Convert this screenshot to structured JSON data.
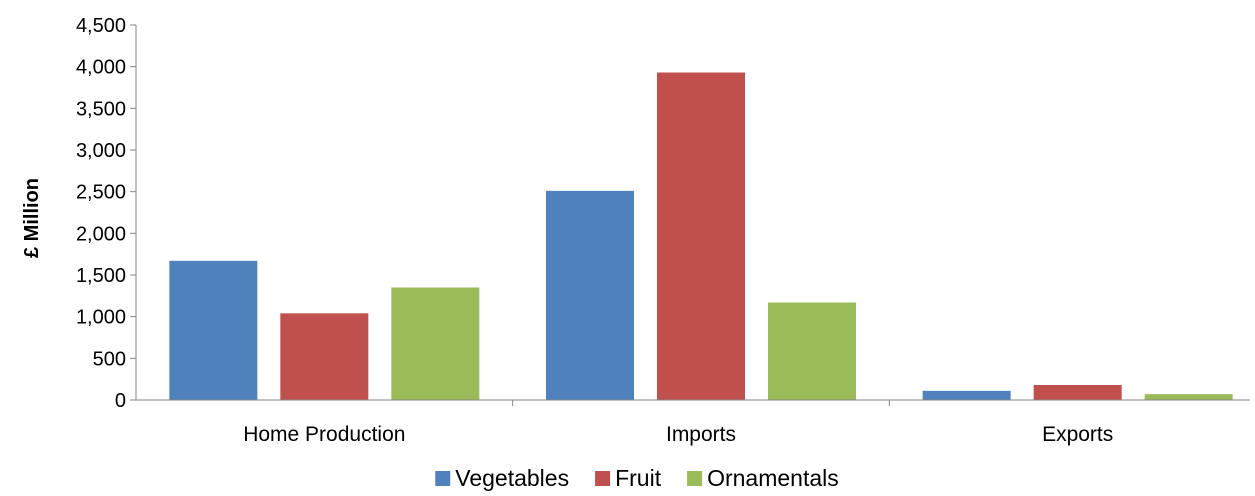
{
  "chart_data": {
    "type": "bar",
    "title": "",
    "xlabel": "",
    "ylabel": "£ Million",
    "ylim": [
      0,
      4500
    ],
    "yticks": [
      0,
      500,
      1000,
      1500,
      2000,
      2500,
      3000,
      3500,
      4000,
      4500
    ],
    "ytick_labels": [
      "0",
      "500",
      "1,000",
      "1,500",
      "2,000",
      "2,500",
      "3,000",
      "3,500",
      "4,000",
      "4,500"
    ],
    "categories": [
      "Home Production",
      "Imports",
      "Exports"
    ],
    "series": [
      {
        "name": "Vegetables",
        "color": "#4F81BD",
        "values": [
          1670,
          2510,
          110
        ]
      },
      {
        "name": "Fruit",
        "color": "#C0504D",
        "values": [
          1040,
          3930,
          180
        ]
      },
      {
        "name": "Ornamentals",
        "color": "#9BBB59",
        "values": [
          1350,
          1170,
          70
        ]
      }
    ],
    "grid": false,
    "legend_position": "bottom"
  }
}
